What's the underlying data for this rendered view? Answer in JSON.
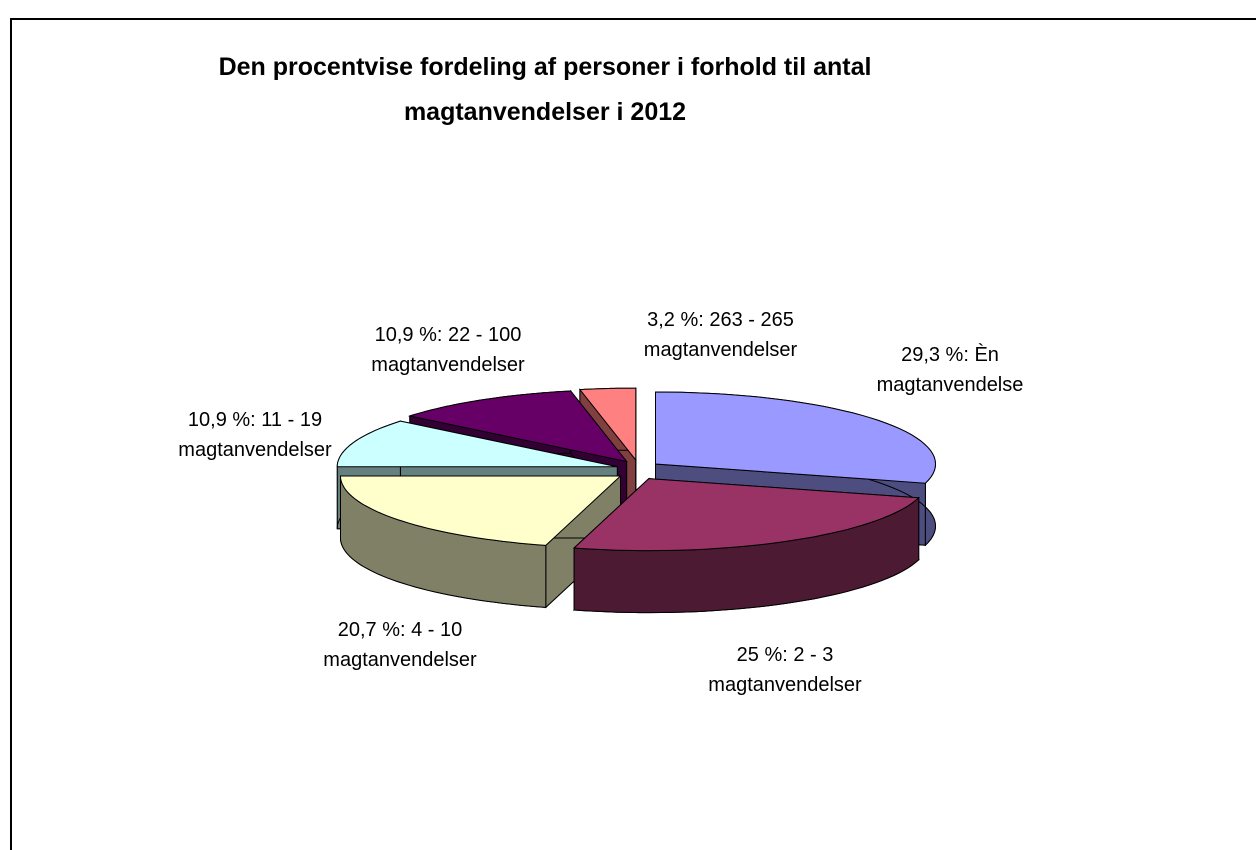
{
  "chart_data": {
    "type": "pie",
    "title": "Den procentvise fordeling af personer i forhold til antal magtanvendelser i 2012",
    "values": [
      29.3,
      25,
      20.7,
      10.9,
      10.9,
      3.2
    ],
    "value_labels": [
      "29,3 %: Èn magtanvendelse",
      "25 %: 2 - 3 magtanvendelser",
      "20,7 %: 4 - 10 magtanvendelser",
      "10,9 %: 11 - 19 magtanvendelser",
      "10,9 %: 22 - 100 magtanvendelser",
      "3,2 %: 263 - 265 magtanvendelser"
    ],
    "colors": [
      "#9999ff",
      "#993366",
      "#ffffcc",
      "#ccffff",
      "#660066",
      "#ff8080"
    ]
  }
}
